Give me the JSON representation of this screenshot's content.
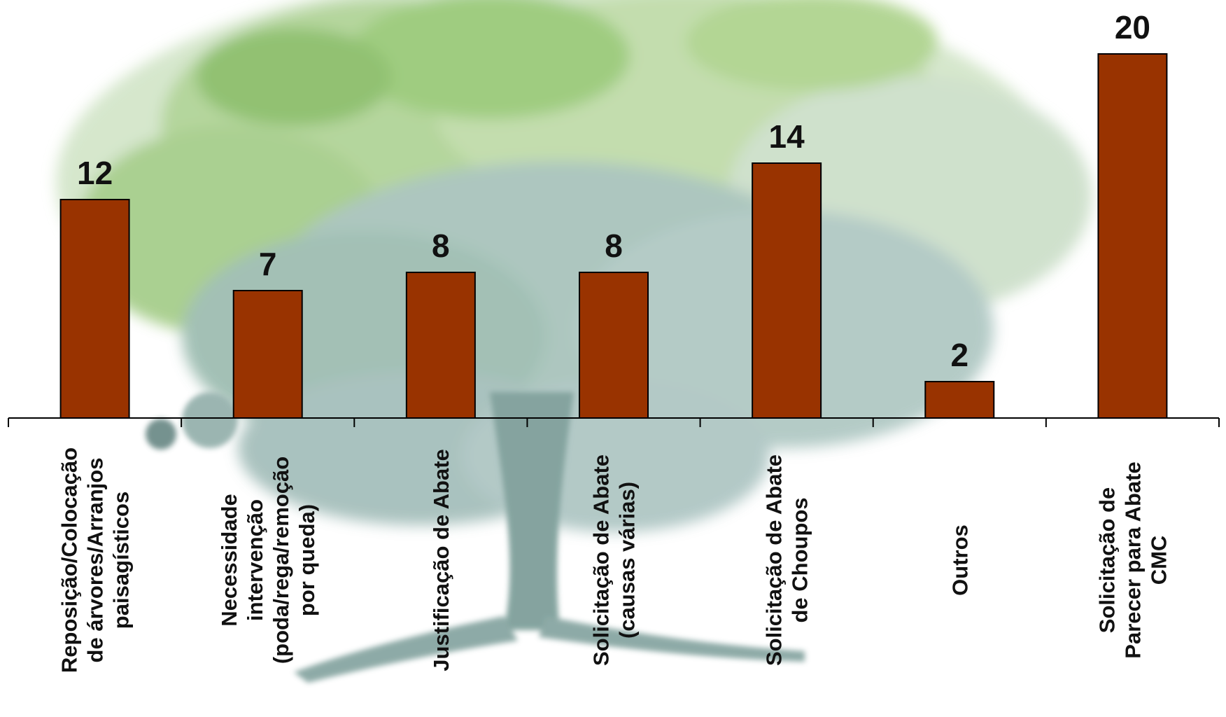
{
  "chart_data": {
    "type": "bar",
    "categories": [
      [
        "Reposição/Colocação",
        "de árvores/Arranjos",
        "paisagísticos"
      ],
      [
        "Necessidade",
        "intervenção",
        "(poda/rega/remoção",
        "por queda)"
      ],
      [
        "Justificação de Abate"
      ],
      [
        "Solicitação de Abate",
        "(causas várias)"
      ],
      [
        "Solicitação de Abate",
        "de Choupos"
      ],
      [
        "Outros"
      ],
      [
        "Solicitação de",
        "Parecer para Abate",
        "CMC"
      ]
    ],
    "values": [
      12,
      7,
      8,
      8,
      14,
      2,
      20
    ],
    "value_labels": [
      "12",
      "7",
      "8",
      "8",
      "14",
      "2",
      "20"
    ],
    "ylim": [
      0,
      20
    ],
    "grid": false,
    "legend": "none",
    "colors": {
      "bar_fill": "#993300",
      "bar_stroke": "#000000",
      "axis": "#000000"
    },
    "background": "faded watercolor tree illustration"
  }
}
